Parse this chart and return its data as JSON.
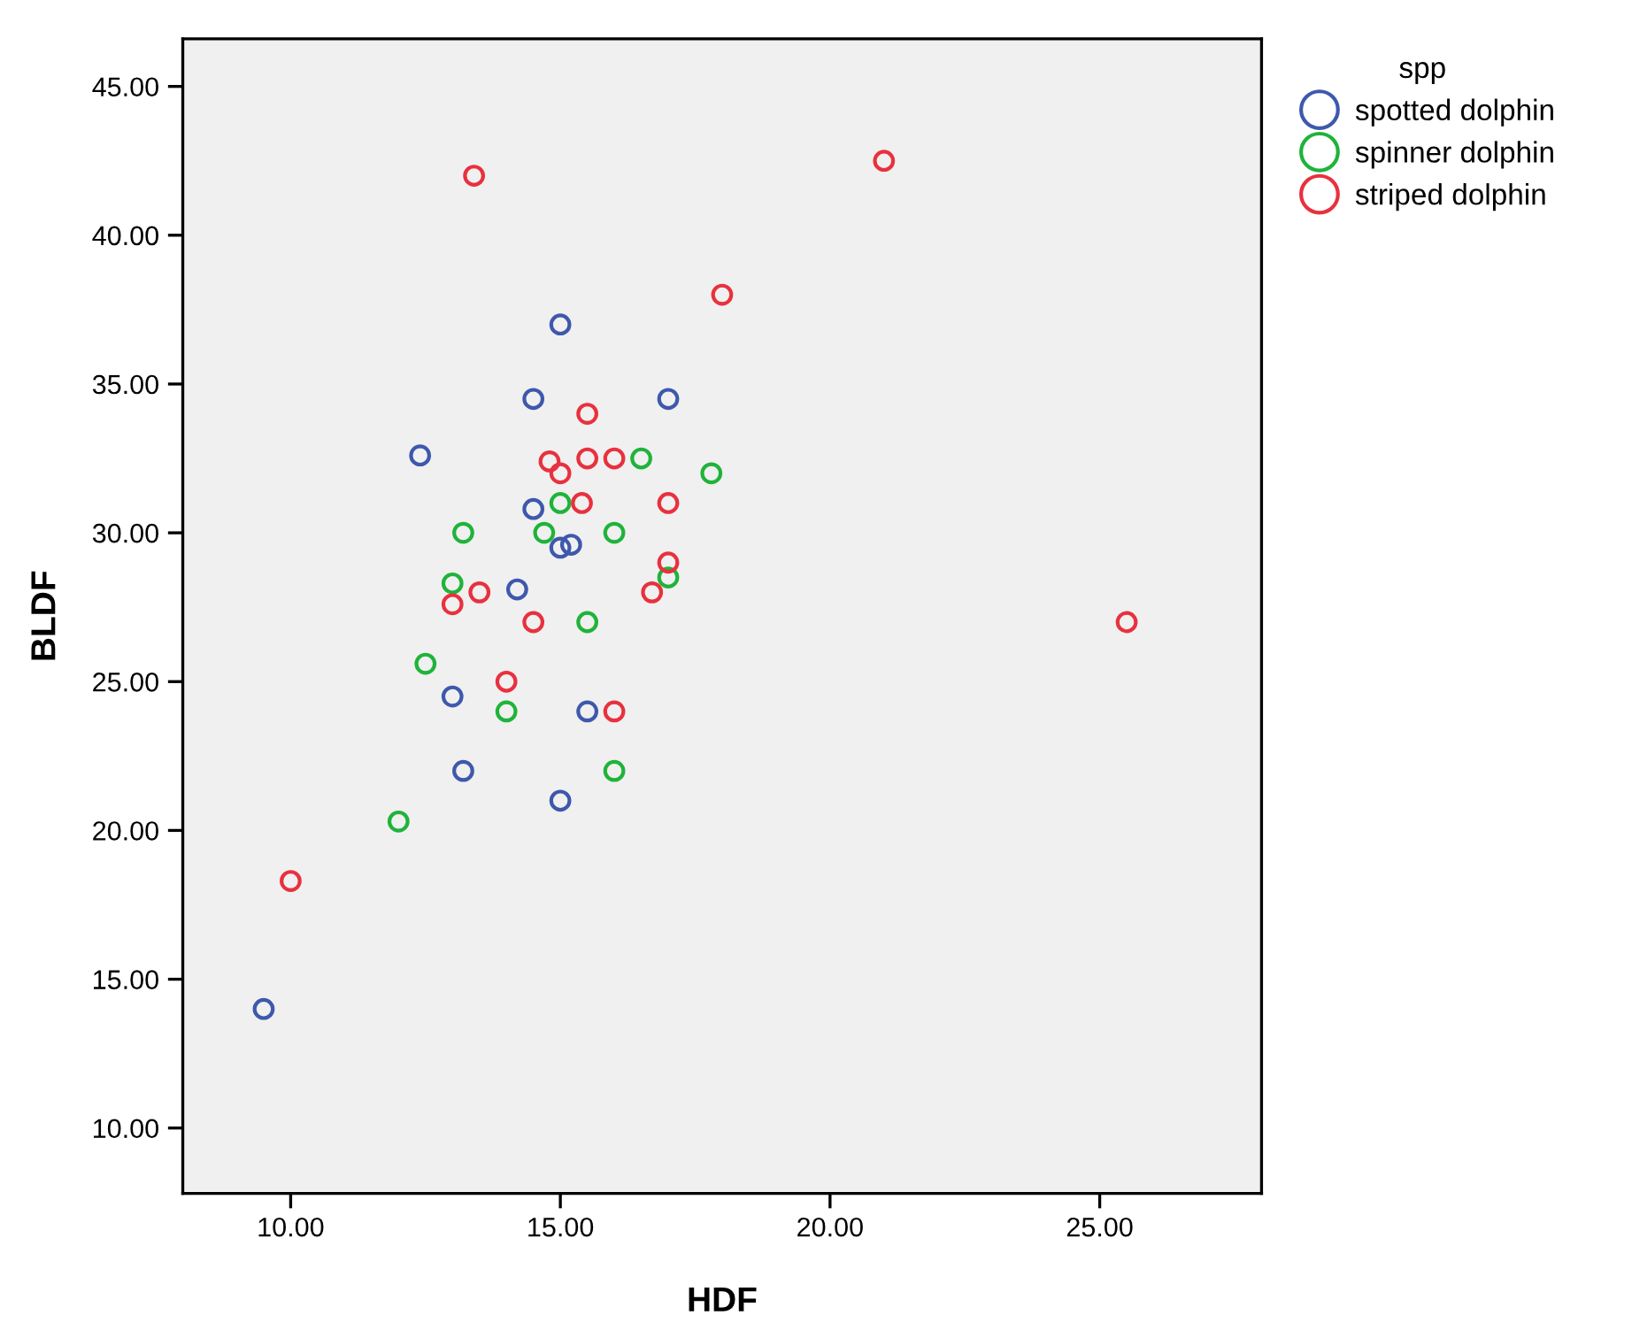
{
  "chart_data": {
    "type": "scatter",
    "xlabel": "HDF",
    "ylabel": "BLDF",
    "legend_title": "spp",
    "legend": "top right",
    "marker": "circle",
    "grid": false,
    "xlim": [
      8,
      28
    ],
    "ylim": [
      7.8,
      46.6
    ],
    "xticks": [
      {
        "value": 10,
        "label": "10.00"
      },
      {
        "value": 15,
        "label": "15.00"
      },
      {
        "value": 20,
        "label": "20.00"
      },
      {
        "value": 25,
        "label": "25.00"
      }
    ],
    "yticks": [
      {
        "value": 10,
        "label": "10.00"
      },
      {
        "value": 15,
        "label": "15.00"
      },
      {
        "value": 20,
        "label": "20.00"
      },
      {
        "value": 25,
        "label": "25.00"
      },
      {
        "value": 30,
        "label": "30.00"
      },
      {
        "value": 35,
        "label": "35.00"
      },
      {
        "value": 40,
        "label": "40.00"
      },
      {
        "value": 45,
        "label": "45.00"
      }
    ],
    "series": [
      {
        "name": "spotted dolphin",
        "color": "#3e58ac",
        "x": [
          15.0,
          14.5,
          17.0,
          12.4,
          14.5,
          14.2,
          15.0,
          15.2,
          13.0,
          15.5,
          13.2,
          15.0,
          9.5
        ],
        "values": [
          37.0,
          34.5,
          34.5,
          32.6,
          30.8,
          28.1,
          29.5,
          29.6,
          24.5,
          24.0,
          22.0,
          21.0,
          14.0
        ]
      },
      {
        "name": "spinner dolphin",
        "color": "#1fb33a",
        "x": [
          16.5,
          17.8,
          15.0,
          14.7,
          16.0,
          13.2,
          13.0,
          17.0,
          15.5,
          12.5,
          14.0,
          16.0,
          12.0
        ],
        "values": [
          32.5,
          32.0,
          31.0,
          30.0,
          30.0,
          30.0,
          28.3,
          28.5,
          27.0,
          25.6,
          24.0,
          22.0,
          20.3
        ]
      },
      {
        "name": "striped dolphin",
        "color": "#e8313e",
        "x": [
          21.0,
          13.4,
          18.0,
          15.5,
          14.8,
          15.0,
          15.5,
          16.0,
          15.4,
          17.0,
          17.0,
          13.5,
          16.7,
          13.0,
          14.5,
          25.5,
          14.0,
          16.0,
          10.0
        ],
        "values": [
          42.5,
          42.0,
          38.0,
          34.0,
          32.4,
          32.0,
          32.5,
          32.5,
          31.0,
          31.0,
          29.0,
          28.0,
          28.0,
          27.6,
          27.0,
          27.0,
          25.0,
          24.0,
          18.3
        ]
      }
    ]
  }
}
